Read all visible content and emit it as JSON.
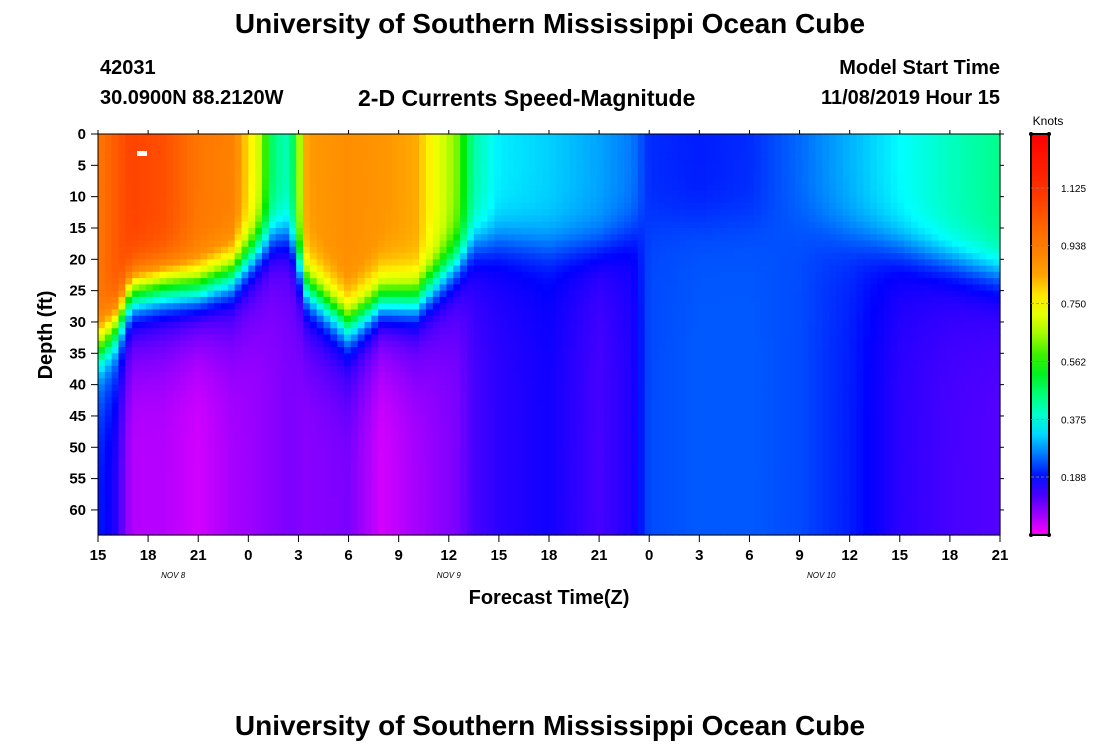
{
  "header": {
    "title": "University of Southern Mississippi Ocean Cube",
    "station_id": "42031",
    "coords": "30.0900N 88.2120W",
    "subtitle": "2-D Currents Speed-Magnitude",
    "model_start_label": "Model Start Time",
    "model_start_value": "11/08/2019 Hour 15"
  },
  "footer": {
    "title": "University of Southern Mississippi Ocean Cube"
  },
  "chart_data": {
    "type": "heatmap",
    "title": "2-D Currents Speed-Magnitude",
    "xlabel": "Forecast Time(Z)",
    "ylabel": "Depth (ft)",
    "x_tick_labels": [
      "15",
      "18",
      "21",
      "0",
      "3",
      "6",
      "9",
      "12",
      "15",
      "18",
      "21",
      "0",
      "3",
      "6",
      "9",
      "12",
      "15",
      "18",
      "21"
    ],
    "x_hours": [
      0,
      54
    ],
    "date_labels": [
      {
        "text": "NOV  8",
        "hour": 4.5
      },
      {
        "text": "NOV  9",
        "hour": 21
      },
      {
        "text": "NOV  10",
        "hour": 43.3
      }
    ],
    "y_tick_labels": [
      "0",
      "5",
      "10",
      "15",
      "20",
      "25",
      "30",
      "35",
      "40",
      "45",
      "50",
      "55",
      "60"
    ],
    "ylim": [
      0,
      64
    ],
    "colorbar": {
      "label": "Knots",
      "min": 0,
      "max": 1.3,
      "tick_labels": [
        "1.125",
        "0.938",
        "0.750",
        "0.562",
        "0.375",
        "0.188"
      ],
      "tick_values": [
        1.125,
        0.938,
        0.75,
        0.562,
        0.375,
        0.188
      ]
    },
    "profiles": [
      {
        "hour": 0,
        "s0": 0.95,
        "h": 30,
        "sb": 0.2
      },
      {
        "hour": 1,
        "s0": 1.02,
        "h": 27,
        "sb": 0.16
      },
      {
        "hour": 2,
        "s0": 1.08,
        "h": 21,
        "sb": 0.05
      },
      {
        "hour": 4,
        "s0": 1.05,
        "h": 20,
        "sb": 0.05
      },
      {
        "hour": 6,
        "s0": 0.95,
        "h": 20,
        "sb": 0.03
      },
      {
        "hour": 8,
        "s0": 0.92,
        "h": 18,
        "sb": 0.06
      },
      {
        "hour": 9.5,
        "s0": 0.72,
        "h": 14,
        "sb": 0.07
      },
      {
        "hour": 10.5,
        "s0": 0.45,
        "h": 12,
        "sb": 0.08
      },
      {
        "hour": 11.5,
        "s0": 0.4,
        "h": 12,
        "sb": 0.09
      },
      {
        "hour": 12.5,
        "s0": 0.85,
        "h": 20,
        "sb": 0.08
      },
      {
        "hour": 15,
        "s0": 0.88,
        "h": 26,
        "sb": 0.09
      },
      {
        "hour": 17,
        "s0": 0.86,
        "h": 22,
        "sb": 0.03
      },
      {
        "hour": 19,
        "s0": 0.84,
        "h": 22,
        "sb": 0.06
      },
      {
        "hour": 21.5,
        "s0": 0.62,
        "h": 16,
        "sb": 0.09
      },
      {
        "hour": 22.5,
        "s0": 0.42,
        "h": 13,
        "sb": 0.13
      },
      {
        "hour": 24,
        "s0": 0.34,
        "h": 13,
        "sb": 0.15
      },
      {
        "hour": 27,
        "s0": 0.32,
        "h": 14,
        "sb": 0.17
      },
      {
        "hour": 30,
        "s0": 0.29,
        "h": 14,
        "sb": 0.13
      },
      {
        "hour": 32,
        "s0": 0.26,
        "h": 12,
        "sb": 0.16
      },
      {
        "hour": 33,
        "s0": 0.21,
        "h": 10,
        "sb": 0.23
      },
      {
        "hour": 36,
        "s0": 0.2,
        "h": 10,
        "sb": 0.24
      },
      {
        "hour": 39,
        "s0": 0.21,
        "h": 10,
        "sb": 0.24
      },
      {
        "hour": 42,
        "s0": 0.25,
        "h": 10,
        "sb": 0.23
      },
      {
        "hour": 45,
        "s0": 0.3,
        "h": 12,
        "sb": 0.2
      },
      {
        "hour": 48,
        "s0": 0.35,
        "h": 14,
        "sb": 0.15
      },
      {
        "hour": 51,
        "s0": 0.4,
        "h": 16,
        "sb": 0.13
      },
      {
        "hour": 54,
        "s0": 0.44,
        "h": 18,
        "sb": 0.12
      }
    ]
  }
}
